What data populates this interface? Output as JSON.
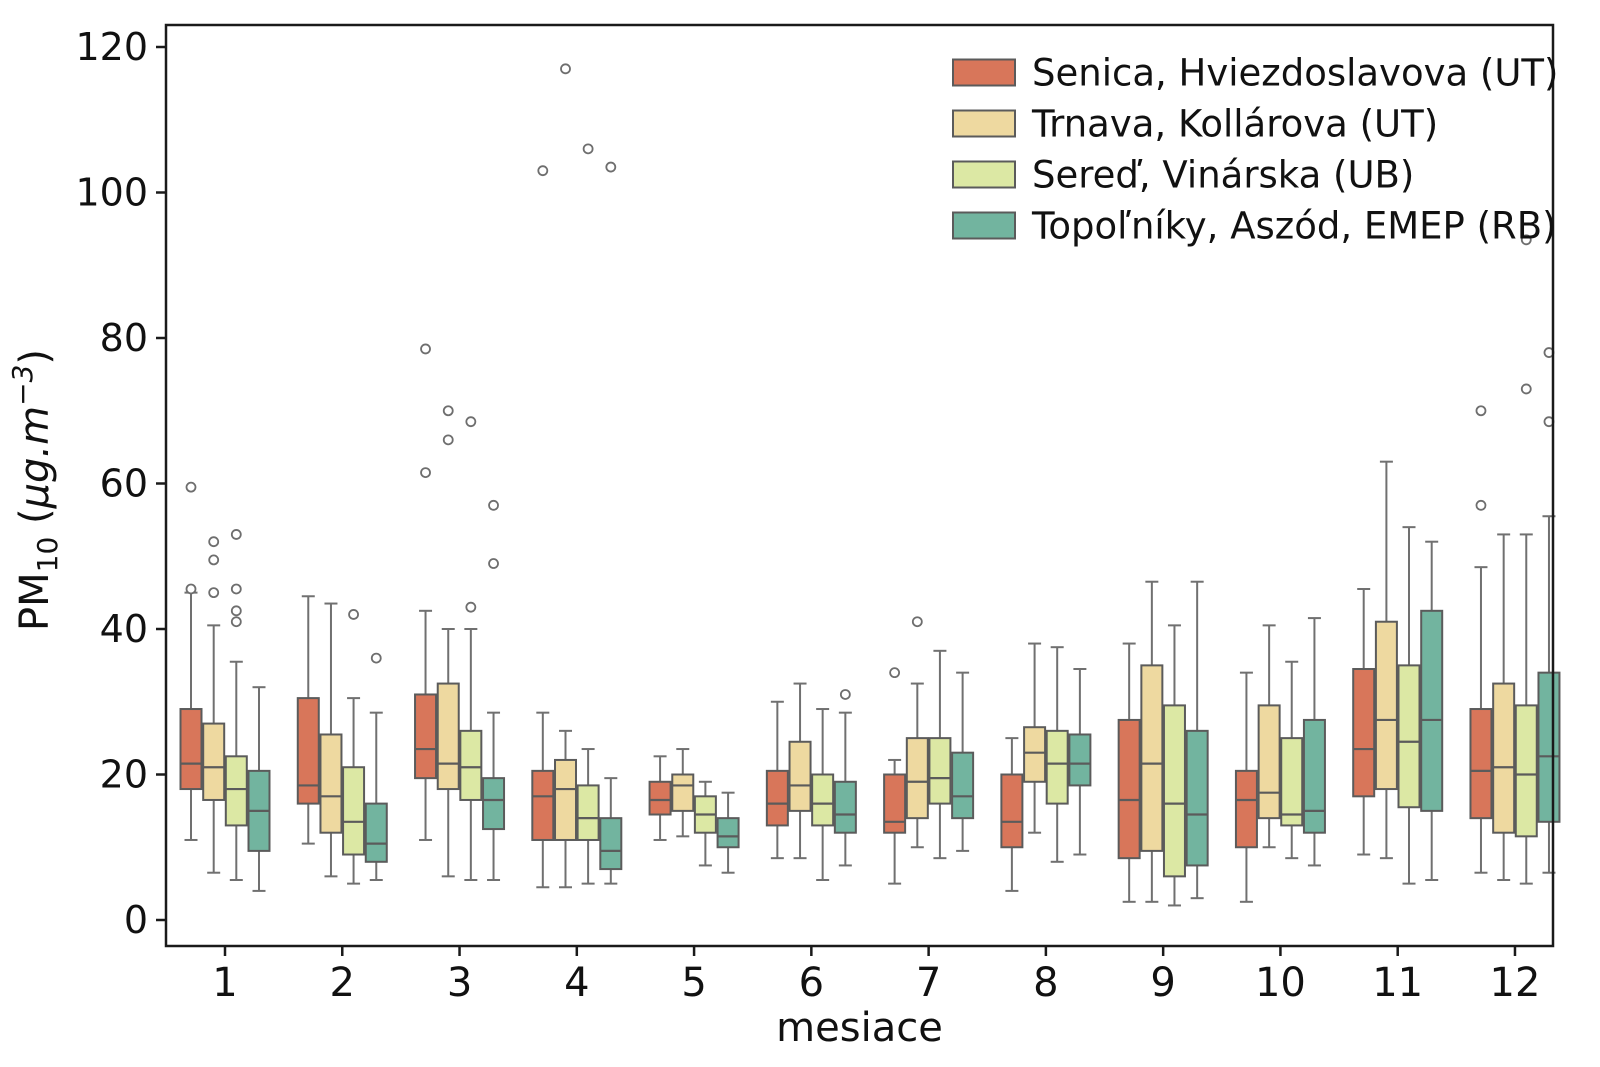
{
  "figure": {
    "description": "Monthly PM10 boxplot comparison for four Slovak air-quality stations"
  },
  "chart_data": {
    "type": "boxplot",
    "title": "",
    "xlabel": "mesiace",
    "ylabel": {
      "base": "PM",
      "sub": "10",
      "unit_prefix": " (",
      "unit": "µg.m",
      "exp": "−3",
      "unit_suffix": ")",
      "plain": "PM10 (µg.m−3)"
    },
    "categories": [
      "1",
      "2",
      "3",
      "4",
      "5",
      "6",
      "7",
      "8",
      "9",
      "10",
      "11",
      "12"
    ],
    "yticks": [
      "0",
      "20",
      "40",
      "60",
      "80",
      "100",
      "120"
    ],
    "ylim": [
      -4,
      123
    ],
    "grid": false,
    "legend_position": "upper right",
    "box_format": [
      "whisker_low",
      "q1",
      "median",
      "q3",
      "whisker_high",
      "outliers"
    ],
    "series": [
      {
        "name": "Senica, Hviezdoslavova (UT)",
        "color": "#d8765a",
        "boxes": [
          [
            11,
            18,
            21.5,
            29,
            45,
            [
              45.5,
              59.5
            ]
          ],
          [
            10.5,
            16,
            18.5,
            30.5,
            44.5,
            []
          ],
          [
            11,
            19.5,
            23.5,
            31,
            42.5,
            [
              61.5,
              78.5
            ]
          ],
          [
            4.5,
            11,
            17,
            20.5,
            28.5,
            [
              103
            ]
          ],
          [
            11,
            14.5,
            16.5,
            19,
            22.5,
            []
          ],
          [
            8.5,
            13,
            16,
            20.5,
            30,
            []
          ],
          [
            5,
            12,
            13.5,
            20,
            22,
            [
              34
            ]
          ],
          [
            4,
            10,
            13.5,
            20,
            25,
            []
          ],
          [
            2.5,
            8.5,
            16.5,
            27.5,
            38,
            []
          ],
          [
            2.5,
            10,
            16.5,
            20.5,
            34,
            []
          ],
          [
            9,
            17,
            23.5,
            34.5,
            45.5,
            []
          ],
          [
            6.5,
            14,
            20.5,
            29,
            48.5,
            [
              57,
              70
            ]
          ]
        ]
      },
      {
        "name": "Trnava, Kollárova (UT)",
        "color": "#eed9a0",
        "boxes": [
          [
            6.5,
            16.5,
            21,
            27,
            40.5,
            [
              45,
              49.5,
              52
            ]
          ],
          [
            6,
            12,
            17,
            25.5,
            43.5,
            []
          ],
          [
            6,
            18,
            21.5,
            32.5,
            40,
            [
              66,
              70
            ]
          ],
          [
            4.5,
            11,
            18,
            22,
            26,
            [
              117
            ]
          ],
          [
            11.5,
            15,
            18.5,
            20,
            23.5,
            []
          ],
          [
            8.5,
            15,
            18.5,
            24.5,
            32.5,
            []
          ],
          [
            10,
            14,
            19,
            25,
            32.5,
            [
              41
            ]
          ],
          [
            12,
            19,
            23,
            26.5,
            38,
            []
          ],
          [
            2.5,
            9.5,
            21.5,
            35,
            46.5,
            []
          ],
          [
            10,
            14,
            17.5,
            29.5,
            40.5,
            []
          ],
          [
            8.5,
            18,
            27.5,
            41,
            63,
            []
          ],
          [
            5.5,
            12,
            21,
            32.5,
            53,
            []
          ]
        ]
      },
      {
        "name": "Sereď, Vinárska (UB)",
        "color": "#dce8a4",
        "boxes": [
          [
            5.5,
            13,
            18,
            22.5,
            35.5,
            [
              41,
              42.5,
              45.5,
              53
            ]
          ],
          [
            5,
            9,
            13.5,
            21,
            30.5,
            [
              42
            ]
          ],
          [
            5.5,
            16.5,
            21,
            26,
            40,
            [
              43,
              68.5
            ]
          ],
          [
            5,
            11,
            14,
            18.5,
            23.5,
            [
              106
            ]
          ],
          [
            7.5,
            12,
            14.5,
            17,
            19,
            []
          ],
          [
            5.5,
            13,
            16,
            20,
            29,
            []
          ],
          [
            8.5,
            16,
            19.5,
            25,
            37,
            []
          ],
          [
            8,
            16,
            21.5,
            26,
            37.5,
            []
          ],
          [
            2,
            6,
            16,
            29.5,
            40.5,
            []
          ],
          [
            8.5,
            13,
            14.5,
            25,
            35.5,
            []
          ],
          [
            5,
            15.5,
            24.5,
            35,
            54,
            []
          ],
          [
            5,
            11.5,
            20,
            29.5,
            53,
            [
              73,
              93.5
            ]
          ]
        ]
      },
      {
        "name": "Topoľníky, Aszód, EMEP (RB)",
        "color": "#72b49f",
        "boxes": [
          [
            4,
            9.5,
            15,
            20.5,
            32,
            []
          ],
          [
            5.5,
            8,
            10.5,
            16,
            28.5,
            [
              36
            ]
          ],
          [
            5.5,
            12.5,
            16.5,
            19.5,
            28.5,
            [
              49,
              57
            ]
          ],
          [
            5,
            7,
            9.5,
            14,
            19.5,
            [
              103.5
            ]
          ],
          [
            6.5,
            10,
            11.5,
            14,
            17.5,
            []
          ],
          [
            7.5,
            12,
            14.5,
            19,
            28.5,
            [
              31
            ]
          ],
          [
            9.5,
            14,
            17,
            23,
            34,
            []
          ],
          [
            9,
            18.5,
            21.5,
            25.5,
            34.5,
            []
          ],
          [
            3,
            7.5,
            14.5,
            26,
            46.5,
            []
          ],
          [
            7.5,
            12,
            15,
            27.5,
            41.5,
            []
          ],
          [
            5.5,
            15,
            27.5,
            42.5,
            52,
            []
          ],
          [
            6.5,
            13.5,
            22.5,
            34,
            55.5,
            [
              68.5,
              78
            ]
          ]
        ]
      }
    ]
  },
  "style_colors": {
    "box_edge": "#5b5b5b",
    "median_line": "#5b5b5b",
    "whisker": "#707070",
    "outlier_edge": "#6e6e6e",
    "axis": "#1a1a1a",
    "background": "#ffffff"
  }
}
